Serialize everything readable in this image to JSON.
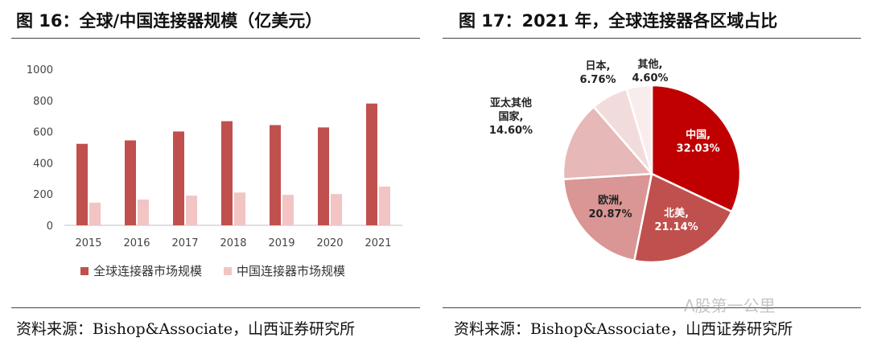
{
  "left": {
    "title": "图 16：全球/中国连接器规模（亿美元）",
    "source": "资料来源：Bishop&Associate，山西证券研究所"
  },
  "right": {
    "title": "图 17：2021 年，全球连接器各区域占比",
    "source": "资料来源：Bishop&Associate，山西证券研究所"
  },
  "watermark": "A股第一公里",
  "colors": {
    "global": "#c0504d",
    "china": "#f2c4c4"
  },
  "chart_data": [
    {
      "type": "bar",
      "categories": [
        "2015",
        "2016",
        "2017",
        "2018",
        "2019",
        "2020",
        "2021"
      ],
      "series": [
        {
          "name": "全球连接器市场规模",
          "values": [
            522,
            544,
            601,
            667,
            642,
            627,
            780
          ]
        },
        {
          "name": "中国连接器市场规模",
          "values": [
            145,
            165,
            190,
            210,
            195,
            200,
            248
          ]
        }
      ],
      "yticks": [
        "0",
        "200",
        "400",
        "600",
        "800",
        "1000"
      ],
      "ylim": [
        0,
        1000
      ],
      "grid": false,
      "legend": "bottom"
    },
    {
      "type": "pie",
      "slices": [
        {
          "label": "中国,",
          "pct_text": "32.03%",
          "value": 32.03,
          "color": "#c00000",
          "text_color": "#ffffff"
        },
        {
          "label": "北美,",
          "pct_text": "21.14%",
          "value": 21.14,
          "color": "#c0504d",
          "text_color": "#ffffff"
        },
        {
          "label": "欧洲,",
          "pct_text": "20.87%",
          "value": 20.87,
          "color": "#d99694",
          "text_color": "#222222"
        },
        {
          "label": "亚太其他\n国家,",
          "pct_text": "14.60%",
          "value": 14.6,
          "color": "#e6b8b7",
          "text_color": "#222222"
        },
        {
          "label": "日本,",
          "pct_text": "6.76%",
          "value": 6.76,
          "color": "#f2dcdb",
          "text_color": "#222222"
        },
        {
          "label": "其他,",
          "pct_text": "4.60%",
          "value": 4.6,
          "color": "#f9ecec",
          "text_color": "#222222"
        }
      ]
    }
  ]
}
